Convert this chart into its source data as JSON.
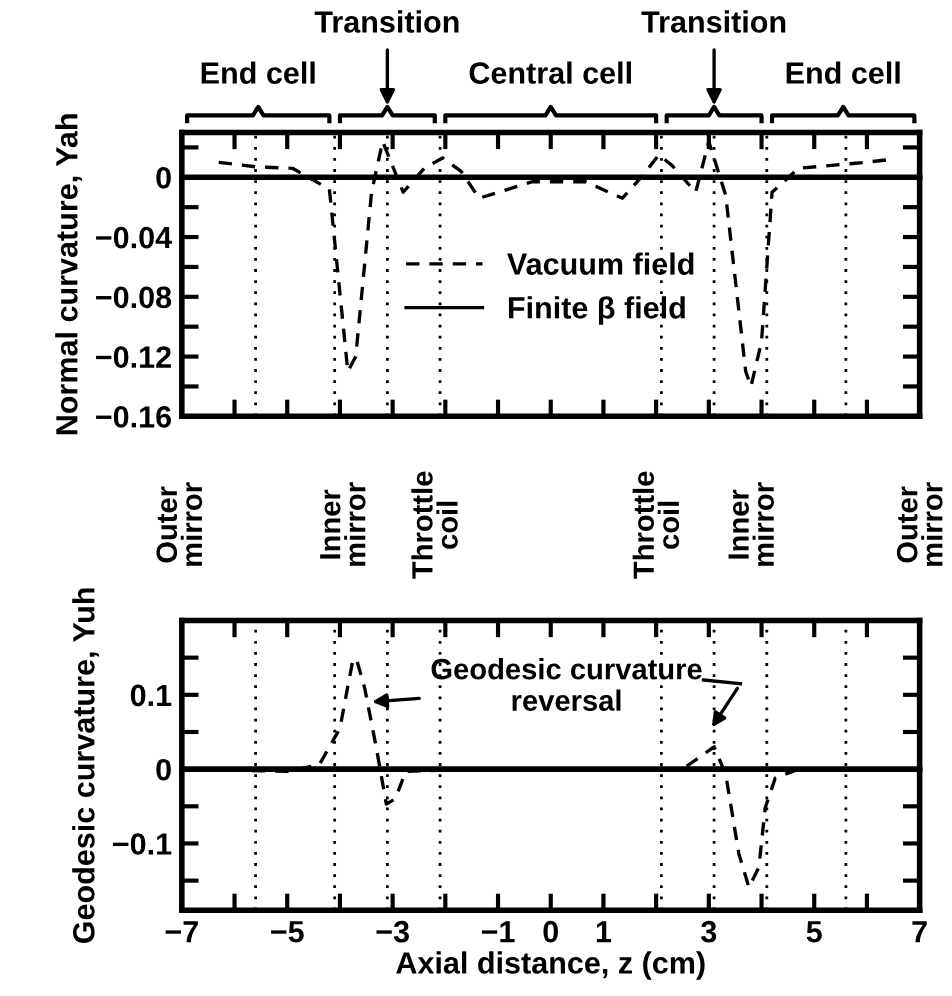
{
  "chart_data": [
    {
      "type": "line",
      "ylabel": "Normal curvature, Yah",
      "xlim": [
        -7,
        7
      ],
      "ylim": [
        -0.16,
        0.03
      ],
      "xticks": [
        -7,
        -6,
        -5,
        -4,
        -3,
        -2,
        -1,
        0,
        1,
        2,
        3,
        4,
        5,
        6,
        7
      ],
      "yticks": [
        {
          "value": 0.02,
          "label": null
        },
        0,
        {
          "value": -0.02,
          "label": null
        },
        -0.04,
        {
          "value": -0.06,
          "label": null
        },
        -0.08,
        {
          "value": -0.1,
          "label": null
        },
        -0.12,
        {
          "value": -0.14,
          "label": null
        },
        -0.16
      ],
      "tick_labels": "y",
      "legend": "center",
      "grid": false,
      "series": [
        {
          "name": "Vacuum field",
          "color": "#000000",
          "line_style": "dashed",
          "x": [
            -6.3,
            -5.6,
            -4.9,
            -4.2,
            -3.85,
            -3.7,
            -3.4,
            -3.19,
            -2.8,
            -2.4,
            -2.05,
            -1.7,
            -1.36,
            -0.35,
            0.66,
            1.36,
            1.74,
            2.05,
            2.3,
            2.75,
            3.0,
            3.32,
            3.7,
            3.8,
            4.0,
            4.2,
            4.7,
            5.97,
            6.47
          ],
          "values": [
            0.01,
            0.007,
            0.006,
            -0.008,
            -0.13,
            -0.12,
            -0.01,
            0.024,
            -0.01,
            0.006,
            0.013,
            0.004,
            -0.014,
            -0.003,
            -0.003,
            -0.014,
            0.001,
            0.015,
            0.008,
            -0.01,
            0.024,
            -0.012,
            -0.13,
            -0.14,
            -0.11,
            -0.01,
            0.006,
            0.01,
            0.012
          ]
        },
        {
          "name": "Finite β field",
          "color": "#000000",
          "line_style": "solid",
          "x": [
            -7,
            7
          ],
          "values": [
            0,
            0
          ]
        }
      ],
      "ref_lines": [
        {
          "axis": "x",
          "value": -5.6,
          "line_style": "dotted"
        },
        {
          "axis": "x",
          "value": -4.1,
          "line_style": "dotted"
        },
        {
          "axis": "x",
          "value": -3.1,
          "line_style": "dotted"
        },
        {
          "axis": "x",
          "value": -2.1,
          "line_style": "dotted"
        },
        {
          "axis": "x",
          "value": 2.1,
          "line_style": "dotted"
        },
        {
          "axis": "x",
          "value": 3.1,
          "line_style": "dotted"
        },
        {
          "axis": "x",
          "value": 4.1,
          "line_style": "dotted"
        },
        {
          "axis": "x",
          "value": 5.6,
          "line_style": "dotted"
        }
      ],
      "annotations": [
        "End cell",
        "Transition",
        "Central cell",
        "Transition",
        "End cell"
      ]
    },
    {
      "type": "line",
      "xlabel": "Axial distance, z (cm)",
      "ylabel": "Geodesic curvature, Yuh",
      "xlim": [
        -7,
        7
      ],
      "ylim": [
        -0.19,
        0.2
      ],
      "xticks": [
        -7,
        {
          "value": -6,
          "label": null
        },
        -5,
        {
          "value": -4,
          "label": null
        },
        -3,
        {
          "value": -2,
          "label": null
        },
        -1,
        0,
        1,
        {
          "value": 2,
          "label": null
        },
        3,
        {
          "value": 4,
          "label": null
        },
        5,
        {
          "value": 6,
          "label": null
        },
        7
      ],
      "yticks": [
        {
          "value": 0.15,
          "label": null
        },
        0.1,
        {
          "value": 0.05,
          "label": null
        },
        0,
        {
          "value": -0.05,
          "label": null
        },
        -0.1,
        {
          "value": -0.15,
          "label": null
        }
      ],
      "grid": false,
      "series": [
        {
          "color": "#000000",
          "line_style": "dashed",
          "x": [
            -7,
            -5.0,
            -4.39,
            -4.0,
            -3.76,
            -3.69,
            -3.53,
            -3.31,
            -3.12,
            -2.95,
            -2.75,
            -1.5,
            2.5,
            3.1,
            3.32,
            3.57,
            3.76,
            3.95,
            4.07,
            4.26,
            4.7,
            7
          ],
          "values": [
            0,
            -0.003,
            0.006,
            0.055,
            0.145,
            0.149,
            0.109,
            0.029,
            -0.047,
            -0.04,
            -0.003,
            0,
            0,
            0.03,
            -0.007,
            -0.114,
            -0.159,
            -0.132,
            -0.052,
            -0.012,
            0,
            0
          ]
        },
        {
          "color": "#000000",
          "line_style": "solid",
          "x": [
            -7,
            7
          ],
          "values": [
            0,
            0
          ]
        }
      ],
      "ref_lines": [
        {
          "axis": "x",
          "value": -5.6,
          "line_style": "dotted"
        },
        {
          "axis": "x",
          "value": -4.1,
          "line_style": "dotted"
        },
        {
          "axis": "x",
          "value": -3.1,
          "line_style": "dotted"
        },
        {
          "axis": "x",
          "value": -2.1,
          "line_style": "dotted"
        },
        {
          "axis": "x",
          "value": 2.1,
          "line_style": "dotted"
        },
        {
          "axis": "x",
          "value": 3.1,
          "line_style": "dotted"
        },
        {
          "axis": "x",
          "value": 4.1,
          "line_style": "dotted"
        },
        {
          "axis": "x",
          "value": 5.6,
          "line_style": "dotted"
        }
      ],
      "annotations": [
        {
          "text": "Geodesic curvature reversal",
          "x": -3.5,
          "y": 0.09
        },
        "Outer mirror",
        "Inner mirror",
        "Throttle coil",
        "Throttle coil",
        "Inner mirror",
        "Outer mirror"
      ]
    }
  ]
}
